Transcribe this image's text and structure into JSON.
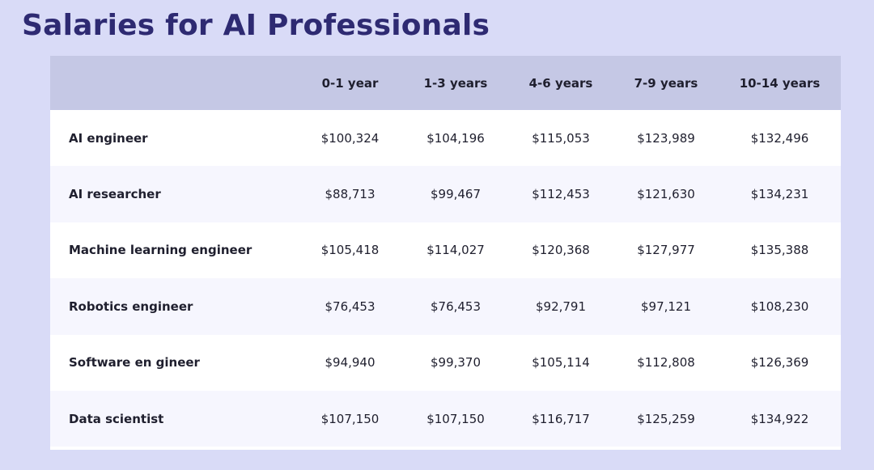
{
  "page": {
    "title": "Salaries for AI Professionals"
  },
  "chart_data": {
    "type": "table",
    "title": "Salaries for AI Professionals",
    "columns": [
      "",
      "0-1 year",
      "1-3 years",
      "4-6 years",
      "7-9 years",
      "10-14 years"
    ],
    "rows": [
      {
        "role": "AI engineer",
        "values": [
          "$100,324",
          "$104,196",
          "$115,053",
          "$123,989",
          "$132,496"
        ]
      },
      {
        "role": "AI researcher",
        "values": [
          "$88,713",
          "$99,467",
          "$112,453",
          "$121,630",
          "$134,231"
        ]
      },
      {
        "role": "Machine learning engineer",
        "values": [
          "$105,418",
          "$114,027",
          "$120,368",
          "$127,977",
          "$135,388"
        ]
      },
      {
        "role": "Robotics engineer",
        "values": [
          "$76,453",
          "$76,453",
          "$92,791",
          "$97,121",
          "$108,230"
        ]
      },
      {
        "role": "Software en gineer",
        "values": [
          "$94,940",
          "$99,370",
          "$105,114",
          "$112,808",
          "$126,369"
        ]
      },
      {
        "role": "Data scientist",
        "values": [
          "$107,150",
          "$107,150",
          "$116,717",
          "$125,259",
          "$134,922"
        ]
      }
    ]
  },
  "colors": {
    "background": "#d9dbf7",
    "title": "#2e2a72",
    "header_row": "#c5c8e5",
    "row_alt": "#f6f6fe",
    "row": "#ffffff"
  }
}
